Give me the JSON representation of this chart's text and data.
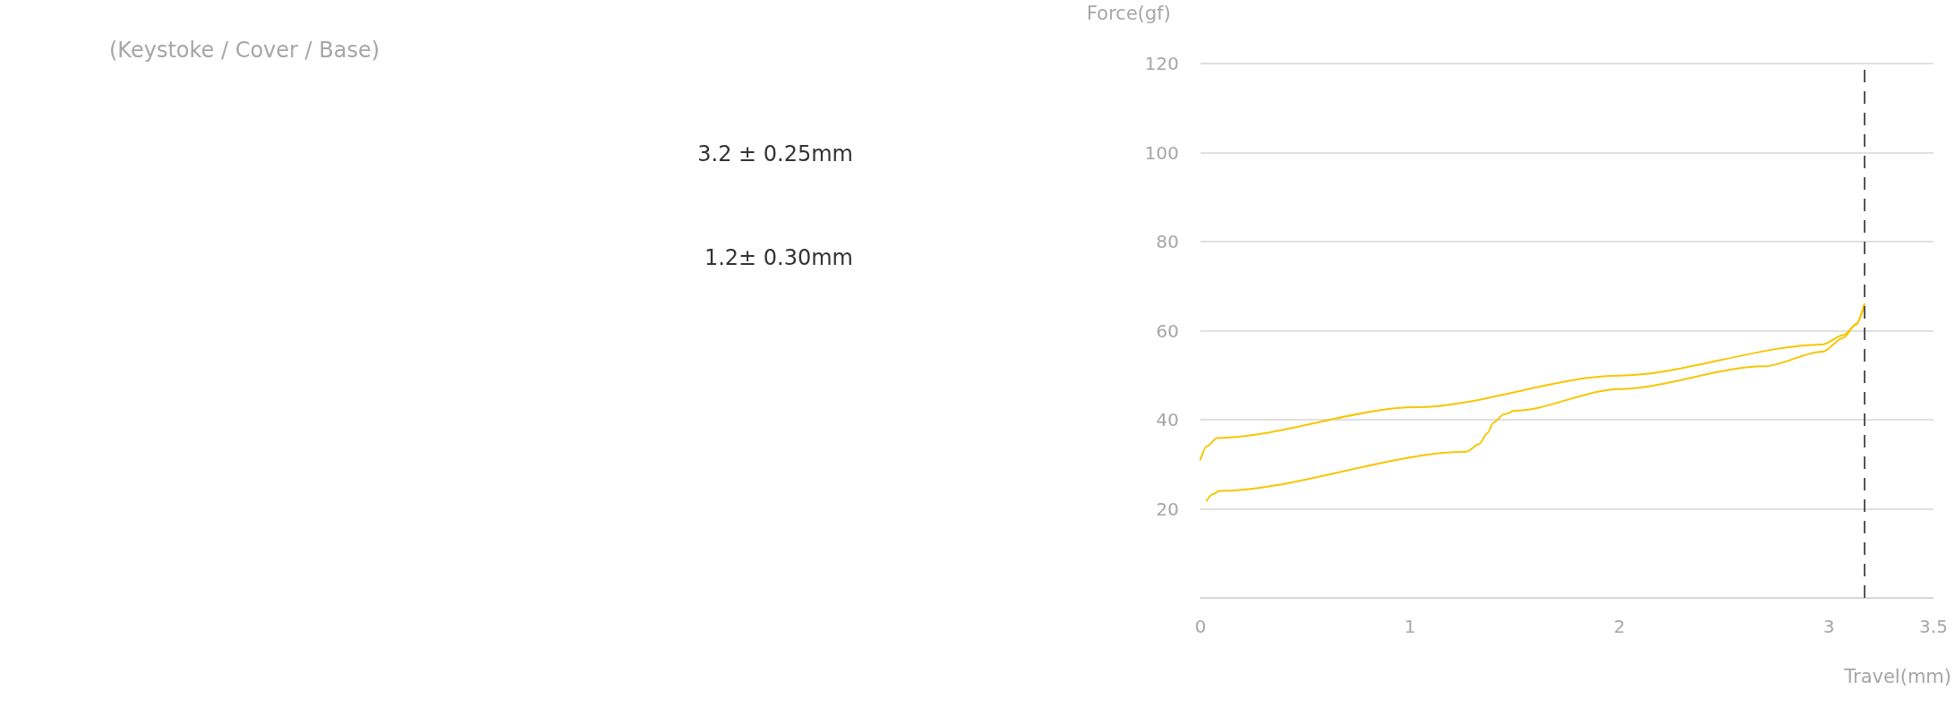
{
  "chart_data": {
    "type": "line",
    "subtitle": "(Keystoke / Cover / Base)",
    "annotations": [
      "3.2 ± 0.25mm",
      "1.2± 0.30mm"
    ],
    "xlabel": "Travel(mm)",
    "ylabel": "Force(gf)",
    "series": [
      {
        "color": "#f7c600",
        "x": [
          0,
          0.03,
          0.08,
          1.03,
          2.0,
          2.97,
          3.07,
          3.13,
          3.17
        ],
        "values": [
          31,
          34,
          35.9,
          42.8,
          49.9,
          56.9,
          59,
          61.3,
          66
        ]
      },
      {
        "color": "#f7c600",
        "x": [
          0.03,
          0.06,
          0.09,
          1.27,
          1.33,
          1.37,
          1.4,
          1.45,
          1.5,
          2.0,
          2.69,
          2.97,
          3.07,
          3.13,
          3.17
        ],
        "values": [
          21.8,
          23.3,
          24,
          32.8,
          34.5,
          37,
          39.4,
          41.2,
          42,
          46.9,
          52,
          55.3,
          58.4,
          61.5,
          65.7
        ]
      }
    ],
    "xlim": [
      0,
      3.5
    ],
    "xticks": [
      0,
      1,
      2,
      3,
      3.5
    ],
    "ylim": [
      0,
      120
    ],
    "yticks": [
      {
        "value": 0,
        "label": null
      },
      20,
      40,
      60,
      80,
      100,
      120
    ],
    "ref_lines": [
      {
        "axis": "x",
        "value": 3.17,
        "color": "#555555",
        "line_style": "dashed"
      }
    ],
    "grid": "y",
    "marker": "none",
    "line_style": "solid"
  }
}
